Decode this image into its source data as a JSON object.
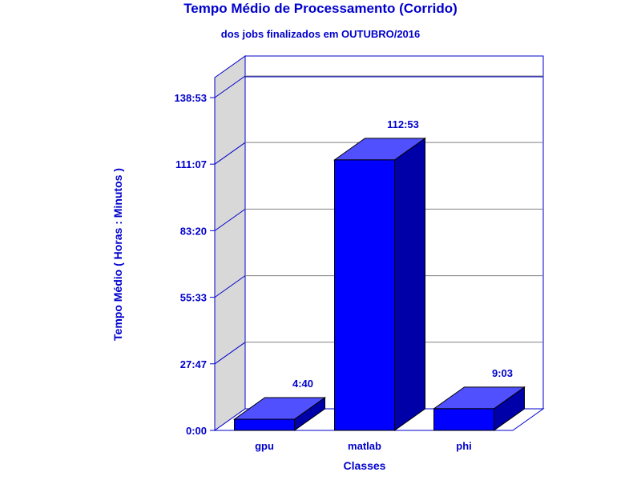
{
  "chart_data": {
    "type": "bar",
    "title": "Tempo Médio de Processamento (Corrido)",
    "subtitle": "dos jobs finalizados em OUTUBRO/2016",
    "xlabel": "Classes",
    "ylabel": "Tempo Médio ( Horas : Minutos )",
    "categories": [
      "gpu",
      "matlab",
      "phi"
    ],
    "values_minutes": [
      280,
      6773,
      543
    ],
    "value_labels": [
      "4:40",
      "112:53",
      "9:03"
    ],
    "y_ticks_minutes": [
      0,
      1667,
      3333,
      5000,
      6667,
      8333
    ],
    "y_tick_labels": [
      "0:00",
      "27:47",
      "55:33",
      "83:20",
      "111:07",
      "138:53"
    ],
    "ylim_minutes": [
      0,
      8333
    ],
    "grid": true,
    "colors": {
      "bar_front": "#0000ff",
      "bar_top": "#5050ff",
      "bar_side": "#0000a8",
      "text": "#0000cc",
      "axis": "#0000cc",
      "left_wall": "#d8d8d8",
      "grid": "#808080"
    }
  }
}
